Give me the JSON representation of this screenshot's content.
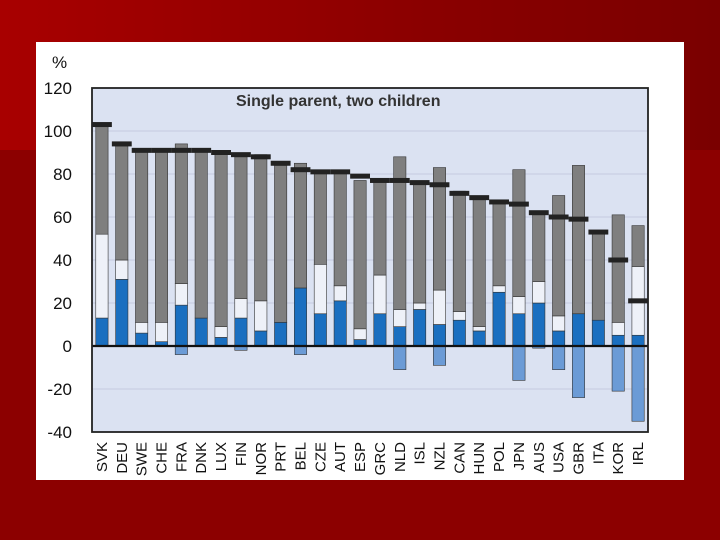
{
  "chart_data": {
    "type": "bar",
    "title": "Single parent, two children",
    "ylabel": "%",
    "ylim": [
      -40,
      120
    ],
    "yticks": [
      120,
      100,
      80,
      60,
      40,
      20,
      0,
      -20,
      -40
    ],
    "categories": [
      "SVK",
      "DEU",
      "SWE",
      "CHE",
      "FRA",
      "DNK",
      "LUX",
      "FIN",
      "NOR",
      "PRT",
      "BEL",
      "CZE",
      "AUT",
      "ESP",
      "GRC",
      "NLD",
      "ISL",
      "NZL",
      "CAN",
      "HUN",
      "POL",
      "JPN",
      "AUS",
      "USA",
      "GBR",
      "ITA",
      "KOR",
      "IRL"
    ],
    "series": [
      {
        "name": "dark blue segment",
        "values": [
          13,
          31,
          6,
          2,
          19,
          13,
          4,
          13,
          7,
          11,
          27,
          15,
          21,
          3,
          15,
          9,
          17,
          10,
          12,
          7,
          25,
          15,
          20,
          7,
          15,
          12,
          5,
          5
        ]
      },
      {
        "name": "white segment",
        "values": [
          39,
          9,
          5,
          9,
          10,
          0,
          5,
          9,
          14,
          0,
          0,
          23,
          7,
          5,
          18,
          8,
          3,
          16,
          4,
          2,
          3,
          8,
          10,
          7,
          0,
          0,
          6,
          32
        ]
      },
      {
        "name": "grey segment",
        "values": [
          51,
          53,
          80,
          80,
          65,
          78,
          80,
          66,
          68,
          73,
          58,
          43,
          53,
          69,
          44,
          71,
          56,
          57,
          56,
          60,
          39,
          59,
          32,
          56,
          69,
          40,
          50,
          19
        ]
      },
      {
        "name": "negative light blue segment",
        "values": [
          0,
          0,
          0,
          0,
          -4,
          0,
          0,
          -2,
          0,
          0,
          -4,
          0,
          0,
          0,
          0,
          -11,
          0,
          -9,
          0,
          0,
          0,
          -16,
          -1,
          -11,
          -24,
          0,
          -21,
          -35
        ]
      },
      {
        "name": "marker (black dash)",
        "values": [
          103,
          94,
          91,
          91,
          91,
          91,
          90,
          89,
          88,
          85,
          82,
          81,
          81,
          79,
          77,
          77,
          76,
          75,
          71,
          69,
          67,
          66,
          62,
          60,
          59,
          53,
          40,
          21
        ]
      }
    ],
    "colors": {
      "dark_blue": "#1a6fc0",
      "white": "#eef1f8",
      "grey": "#7f7f7f",
      "light_blue": "#6b9bd6",
      "marker": "#222222",
      "plot_background": "#dbe2f2"
    },
    "grid": true,
    "legend": "none"
  }
}
